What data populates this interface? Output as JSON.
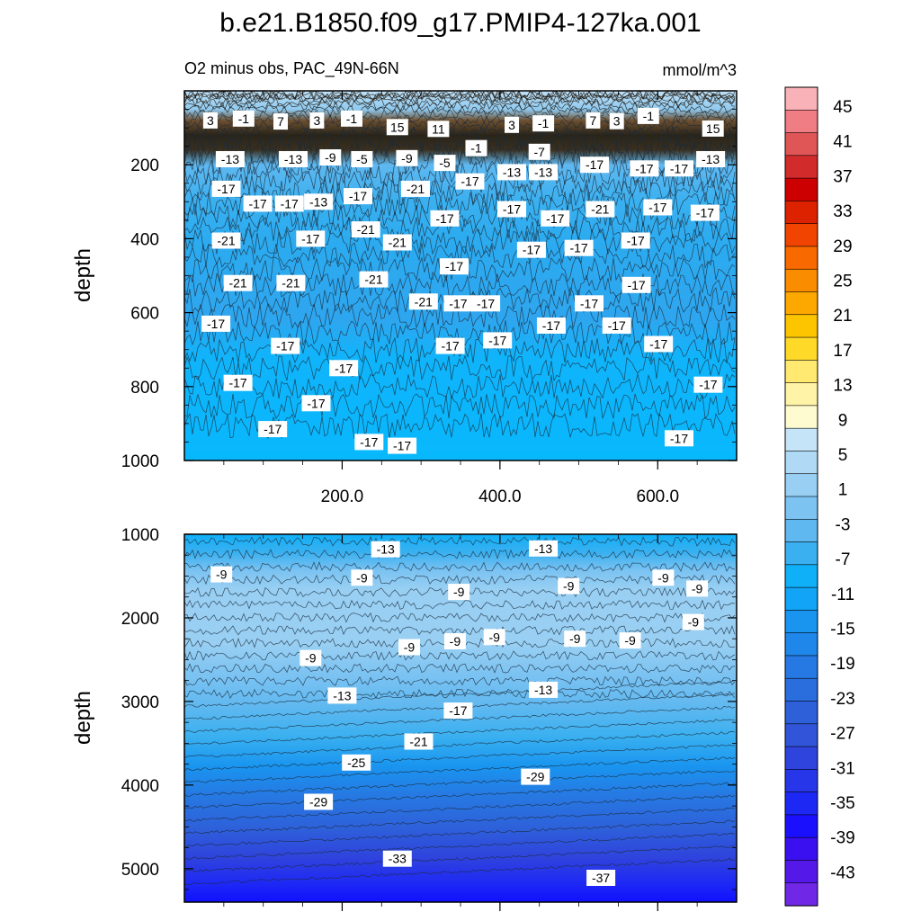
{
  "chart_data": {
    "type": "heatmap",
    "title": "b.e21.B1850.f09_g17.PMIP4-127ka.001",
    "subtitle_left": "O2 minus obs, PAC_49N-66N",
    "subtitle_right": "mmol/m^3",
    "ylabel": "depth",
    "x_ticks": [
      "200.0",
      "400.0",
      "600.0"
    ],
    "x_tick_values": [
      200,
      400,
      600
    ],
    "xlim": [
      0,
      700
    ],
    "panels": [
      {
        "name": "upper",
        "ylim": [
          1000,
          0
        ],
        "y_ticks": [
          "200",
          "400",
          "600",
          "800",
          "1000"
        ],
        "y_tick_values": [
          200,
          400,
          600,
          800,
          1000
        ],
        "contour_labels": [
          {
            "t": "3",
            "x": 33,
            "y": 80
          },
          {
            "t": "-1",
            "x": 75,
            "y": 75
          },
          {
            "t": "7",
            "x": 122,
            "y": 83
          },
          {
            "t": "3",
            "x": 168,
            "y": 80
          },
          {
            "t": "-1",
            "x": 212,
            "y": 75
          },
          {
            "t": "15",
            "x": 270,
            "y": 98
          },
          {
            "t": "11",
            "x": 322,
            "y": 103
          },
          {
            "t": "3",
            "x": 415,
            "y": 92
          },
          {
            "t": "-1",
            "x": 455,
            "y": 88
          },
          {
            "t": "7",
            "x": 518,
            "y": 80
          },
          {
            "t": "3",
            "x": 548,
            "y": 82
          },
          {
            "t": "-1",
            "x": 588,
            "y": 68
          },
          {
            "t": "15",
            "x": 670,
            "y": 102
          },
          {
            "t": "-13",
            "x": 58,
            "y": 185
          },
          {
            "t": "-13",
            "x": 138,
            "y": 185
          },
          {
            "t": "-9",
            "x": 185,
            "y": 180
          },
          {
            "t": "-5",
            "x": 225,
            "y": 185
          },
          {
            "t": "-9",
            "x": 282,
            "y": 182
          },
          {
            "t": "-5",
            "x": 330,
            "y": 195
          },
          {
            "t": "-1",
            "x": 370,
            "y": 155
          },
          {
            "t": "-13",
            "x": 415,
            "y": 220
          },
          {
            "t": "-7",
            "x": 450,
            "y": 165
          },
          {
            "t": "-13",
            "x": 455,
            "y": 220
          },
          {
            "t": "-17",
            "x": 520,
            "y": 200
          },
          {
            "t": "-17",
            "x": 583,
            "y": 210
          },
          {
            "t": "-17",
            "x": 627,
            "y": 210
          },
          {
            "t": "-13",
            "x": 667,
            "y": 185
          },
          {
            "t": "-17",
            "x": 53,
            "y": 265
          },
          {
            "t": "-17",
            "x": 93,
            "y": 305
          },
          {
            "t": "-17",
            "x": 133,
            "y": 305
          },
          {
            "t": "-13",
            "x": 170,
            "y": 300
          },
          {
            "t": "-17",
            "x": 220,
            "y": 285
          },
          {
            "t": "-21",
            "x": 293,
            "y": 265
          },
          {
            "t": "-17",
            "x": 362,
            "y": 245
          },
          {
            "t": "-17",
            "x": 415,
            "y": 320
          },
          {
            "t": "-17",
            "x": 470,
            "y": 345
          },
          {
            "t": "-21",
            "x": 527,
            "y": 320
          },
          {
            "t": "-17",
            "x": 600,
            "y": 315
          },
          {
            "t": "-17",
            "x": 660,
            "y": 330
          },
          {
            "t": "-21",
            "x": 53,
            "y": 405
          },
          {
            "t": "-17",
            "x": 160,
            "y": 400
          },
          {
            "t": "-21",
            "x": 230,
            "y": 375
          },
          {
            "t": "-21",
            "x": 270,
            "y": 410
          },
          {
            "t": "-17",
            "x": 330,
            "y": 345
          },
          {
            "t": "-17",
            "x": 440,
            "y": 430
          },
          {
            "t": "-17",
            "x": 500,
            "y": 425
          },
          {
            "t": "-17",
            "x": 572,
            "y": 405
          },
          {
            "t": "-21",
            "x": 68,
            "y": 520
          },
          {
            "t": "-21",
            "x": 135,
            "y": 520
          },
          {
            "t": "-21",
            "x": 240,
            "y": 510
          },
          {
            "t": "-17",
            "x": 342,
            "y": 475
          },
          {
            "t": "-21",
            "x": 303,
            "y": 570
          },
          {
            "t": "-17",
            "x": 347,
            "y": 575
          },
          {
            "t": "-17",
            "x": 382,
            "y": 575
          },
          {
            "t": "-17",
            "x": 513,
            "y": 575
          },
          {
            "t": "-17",
            "x": 573,
            "y": 525
          },
          {
            "t": "-17",
            "x": 40,
            "y": 630
          },
          {
            "t": "-17",
            "x": 465,
            "y": 635
          },
          {
            "t": "-17",
            "x": 548,
            "y": 635
          },
          {
            "t": "-17",
            "x": 128,
            "y": 690
          },
          {
            "t": "-17",
            "x": 337,
            "y": 690
          },
          {
            "t": "-17",
            "x": 397,
            "y": 675
          },
          {
            "t": "-17",
            "x": 601,
            "y": 685
          },
          {
            "t": "-17",
            "x": 68,
            "y": 790
          },
          {
            "t": "-17",
            "x": 202,
            "y": 750
          },
          {
            "t": "-17",
            "x": 167,
            "y": 845
          },
          {
            "t": "-17",
            "x": 664,
            "y": 795
          },
          {
            "t": "-17",
            "x": 112,
            "y": 915
          },
          {
            "t": "-17",
            "x": 234,
            "y": 950
          },
          {
            "t": "-17",
            "x": 276,
            "y": 960
          },
          {
            "t": "-17",
            "x": 627,
            "y": 940
          }
        ]
      },
      {
        "name": "lower",
        "ylim": [
          5400,
          1000
        ],
        "y_ticks": [
          "1000",
          "2000",
          "3000",
          "4000",
          "5000"
        ],
        "y_tick_values": [
          1000,
          2000,
          3000,
          4000,
          5000
        ],
        "contour_labels": [
          {
            "t": "-13",
            "x": 255,
            "y": 1180
          },
          {
            "t": "-13",
            "x": 455,
            "y": 1170
          },
          {
            "t": "-9",
            "x": 47,
            "y": 1480
          },
          {
            "t": "-9",
            "x": 225,
            "y": 1520
          },
          {
            "t": "-9",
            "x": 348,
            "y": 1690
          },
          {
            "t": "-9",
            "x": 487,
            "y": 1620
          },
          {
            "t": "-9",
            "x": 607,
            "y": 1520
          },
          {
            "t": "-9",
            "x": 650,
            "y": 1650
          },
          {
            "t": "-9",
            "x": 645,
            "y": 2050
          },
          {
            "t": "-9",
            "x": 160,
            "y": 2480
          },
          {
            "t": "-9",
            "x": 285,
            "y": 2350
          },
          {
            "t": "-9",
            "x": 343,
            "y": 2280
          },
          {
            "t": "-9",
            "x": 393,
            "y": 2230
          },
          {
            "t": "-9",
            "x": 495,
            "y": 2250
          },
          {
            "t": "-9",
            "x": 565,
            "y": 2270
          },
          {
            "t": "-13",
            "x": 200,
            "y": 2930
          },
          {
            "t": "-13",
            "x": 455,
            "y": 2860
          },
          {
            "t": "-17",
            "x": 347,
            "y": 3110
          },
          {
            "t": "-21",
            "x": 297,
            "y": 3480
          },
          {
            "t": "-25",
            "x": 218,
            "y": 3730
          },
          {
            "t": "-29",
            "x": 445,
            "y": 3900
          },
          {
            "t": "-29",
            "x": 170,
            "y": 4200
          },
          {
            "t": "-33",
            "x": 270,
            "y": 4880
          },
          {
            "t": "-37",
            "x": 528,
            "y": 5110
          }
        ]
      }
    ],
    "colorbar": {
      "labels": [
        "45",
        "41",
        "37",
        "33",
        "29",
        "25",
        "21",
        "17",
        "13",
        "9",
        "5",
        "1",
        "-3",
        "-7",
        "-11",
        "-15",
        "-19",
        "-23",
        "-27",
        "-31",
        "-35",
        "-39",
        "-43"
      ],
      "colors": [
        "#f9b3b8",
        "#f07c84",
        "#e05555",
        "#d12b2b",
        "#cc0000",
        "#dd2200",
        "#f04400",
        "#f86a00",
        "#fa8c00",
        "#fca800",
        "#fdc400",
        "#fed928",
        "#ffe970",
        "#fff3a8",
        "#fffbd0",
        "#c6e4f7",
        "#afd9f5",
        "#98cff3",
        "#7cc3f2",
        "#5fb8f0",
        "#3ab0f0",
        "#10b0f8",
        "#12a4f6",
        "#1995f0",
        "#1f87ea",
        "#2679e2",
        "#2a6ddd",
        "#2e60da",
        "#3154d8",
        "#2f43dd",
        "#2836ea",
        "#1e28f5",
        "#1a10fd",
        "#3a10f0",
        "#5418e8",
        "#7028e6"
      ]
    }
  }
}
